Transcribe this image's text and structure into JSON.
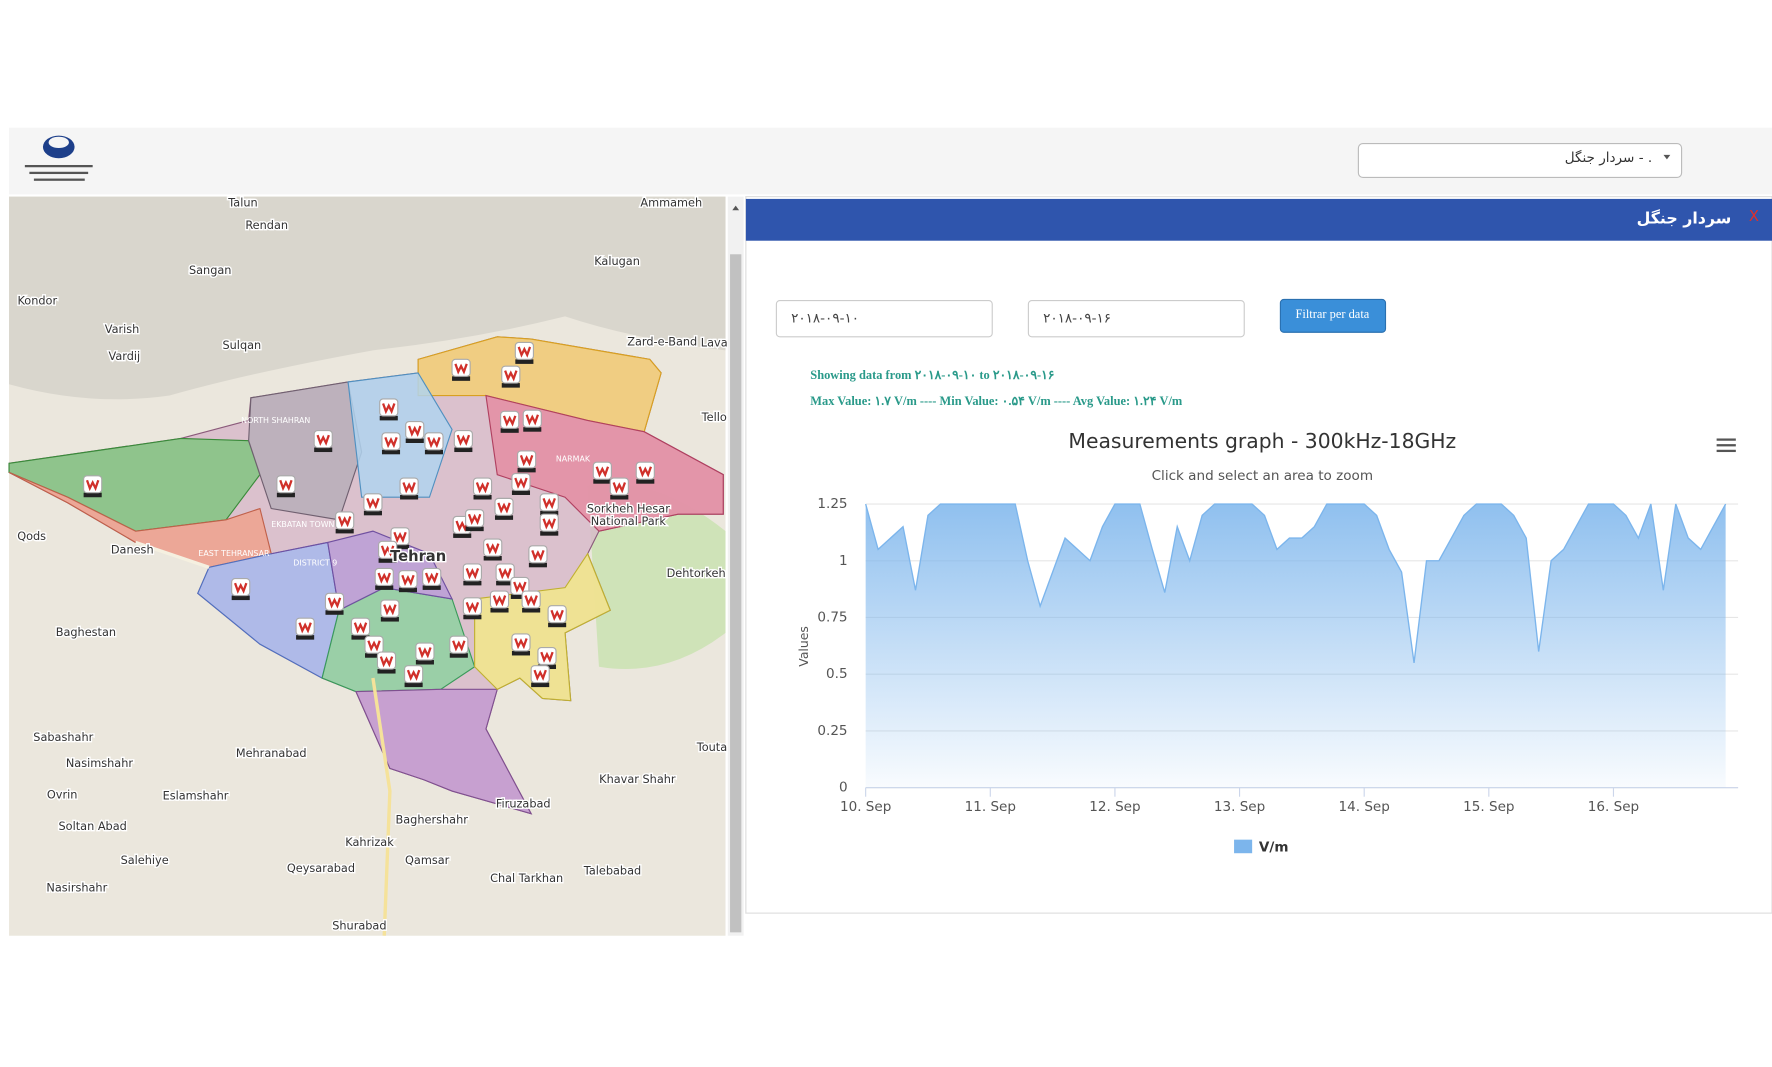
{
  "header": {
    "dropdown": "سردار جنگل - ."
  },
  "map": {
    "labels": [
      "Talun",
      "Rendan",
      "Sangan",
      "Kondor",
      "Varish",
      "Vardij",
      "Sulqan",
      "Kalugan",
      "Ammameh",
      "Zard-e-Band",
      "Lava",
      "Qods",
      "Danesh",
      "Baghestan",
      "Sabashahr",
      "Nasimshahr",
      "Mehranabad",
      "Eslamshahr",
      "Ovrin",
      "Soltan Abad",
      "Salehiye",
      "Nasirshahr",
      "Qeysarabad",
      "Baghershahr",
      "Kahrizak",
      "Qamsar",
      "Chal Tarkhan",
      "Talebabad",
      "Khavar Shahr",
      "Firuzabad",
      "Dehtorkeh",
      "Sorkheh Hesar",
      "National Park",
      "Shurabad",
      "Tehran",
      "DISTRICT 9",
      "EKBATAN TOWN",
      "EAST TEHRANSAR",
      "NORTH SHAHRAN",
      "NARMAK",
      "Tello",
      "Touta"
    ]
  },
  "panel": {
    "title": "سردار جنگل",
    "close": "X",
    "date_from": "۲۰۱۸-۰۹-۱۰",
    "date_to": "۲۰۱۸-۰۹-۱۶",
    "button": "Filtrar per data",
    "showing": "Showing data from ۲۰۱۸-۰۹-۱۰ to ۲۰۱۸-۰۹-۱۶",
    "stats": "Max Value: ۱.۷ V/m ---- Min Value: ۰.۵۴ V/m ---- Avg Value: ۱.۲۴ V/m"
  },
  "chart_data": {
    "type": "area",
    "title": "Measurements graph - 300kHz-18GHz",
    "subtitle": "Click and select an area to zoom",
    "y_label": "Values",
    "x": [
      10,
      10.1,
      10.2,
      10.3,
      10.4,
      10.5,
      10.6,
      10.7,
      10.8,
      10.9,
      11,
      11.1,
      11.2,
      11.3,
      11.4,
      11.5,
      11.6,
      11.7,
      11.8,
      11.9,
      12,
      12.1,
      12.2,
      12.3,
      12.4,
      12.5,
      12.6,
      12.7,
      12.8,
      12.9,
      13,
      13.1,
      13.2,
      13.3,
      13.4,
      13.5,
      13.6,
      13.7,
      13.8,
      13.9,
      14,
      14.1,
      14.2,
      14.3,
      14.4,
      14.5,
      14.6,
      14.7,
      14.8,
      14.9,
      15,
      15.1,
      15.2,
      15.3,
      15.4,
      15.5,
      15.6,
      15.7,
      15.8,
      15.9,
      16,
      16.1,
      16.2,
      16.3,
      16.4,
      16.5,
      16.6,
      16.7,
      16.8,
      16.9
    ],
    "xlim": [
      10,
      17
    ],
    "xticks": [
      {
        "value": 10,
        "label": "10. Sep"
      },
      {
        "value": 11,
        "label": "11. Sep"
      },
      {
        "value": 12,
        "label": "12. Sep"
      },
      {
        "value": 13,
        "label": "13. Sep"
      },
      {
        "value": 14,
        "label": "14. Sep"
      },
      {
        "value": 15,
        "label": "15. Sep"
      },
      {
        "value": 16,
        "label": "16. Sep"
      }
    ],
    "ylim": [
      0,
      1.25
    ],
    "yticks": [
      0,
      0.25,
      0.5,
      0.75,
      1,
      1.25
    ],
    "grid": true,
    "series": [
      {
        "name": "V/m",
        "color": "#7cb5ec",
        "values": [
          1.25,
          1.05,
          1.1,
          1.15,
          0.87,
          1.2,
          1.25,
          1.25,
          1.25,
          1.25,
          1.25,
          1.25,
          1.25,
          1.0,
          0.8,
          0.95,
          1.1,
          1.05,
          1.0,
          1.15,
          1.25,
          1.25,
          1.25,
          1.05,
          0.86,
          1.15,
          1.0,
          1.2,
          1.25,
          1.25,
          1.25,
          1.25,
          1.2,
          1.05,
          1.1,
          1.1,
          1.15,
          1.25,
          1.25,
          1.25,
          1.25,
          1.2,
          1.05,
          0.95,
          0.55,
          1.0,
          1.0,
          1.1,
          1.2,
          1.25,
          1.25,
          1.25,
          1.2,
          1.1,
          0.6,
          1.0,
          1.05,
          1.15,
          1.25,
          1.25,
          1.25,
          1.2,
          1.1,
          1.25,
          0.87,
          1.25,
          1.1,
          1.05,
          1.15,
          1.25
        ]
      }
    ]
  }
}
